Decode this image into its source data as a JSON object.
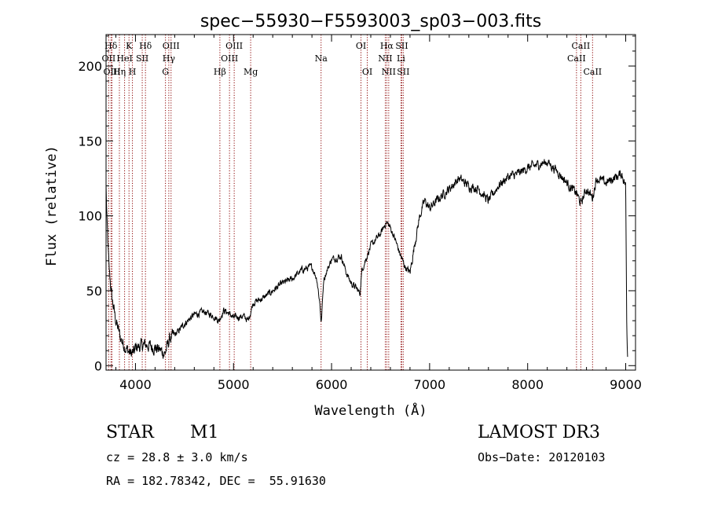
{
  "chart_data": {
    "type": "line",
    "title": "spec−55930−F5593003_sp03−003.fits",
    "xlabel": "Wavelength (Å)",
    "ylabel": "Flux (relative)",
    "xlim": [
      3700,
      9100
    ],
    "ylim": [
      -3,
      221
    ],
    "xticks": [
      4000,
      5000,
      6000,
      7000,
      8000,
      9000
    ],
    "yticks": [
      0,
      50,
      100,
      150,
      200
    ],
    "grid": false,
    "legend": "none",
    "line_color": "#000000",
    "marker_color": "#8b0000",
    "line_markers": [
      {
        "label": "Hδ",
        "x": 3750,
        "row": 1
      },
      {
        "label": "OII",
        "x": 3727,
        "row": 2
      },
      {
        "label": "OIII",
        "x": 3760,
        "row": 3
      },
      {
        "label": "K",
        "x": 3934,
        "row": 1
      },
      {
        "label": "HeI",
        "x": 3889,
        "row": 2
      },
      {
        "label": "Hη",
        "x": 3836,
        "row": 3
      },
      {
        "label": "SII",
        "x": 4069,
        "row": 2
      },
      {
        "label": "H",
        "x": 3969,
        "row": 3
      },
      {
        "label": "Hδ",
        "x": 4102,
        "row": 1
      },
      {
        "label": "OIII",
        "x": 4363,
        "row": 1
      },
      {
        "label": "Hγ",
        "x": 4340,
        "row": 2
      },
      {
        "label": "G",
        "x": 4306,
        "row": 3
      },
      {
        "label": "OIII",
        "x": 5007,
        "row": 1
      },
      {
        "label": "OIII",
        "x": 4959,
        "row": 2
      },
      {
        "label": "Hβ",
        "x": 4861,
        "row": 3
      },
      {
        "label": "Mg",
        "x": 5175,
        "row": 3
      },
      {
        "label": "Na",
        "x": 5893,
        "row": 2
      },
      {
        "label": "OI",
        "x": 6300,
        "row": 1
      },
      {
        "label": "OI",
        "x": 6364,
        "row": 3
      },
      {
        "label": "Hα",
        "x": 6563,
        "row": 1
      },
      {
        "label": "NII",
        "x": 6548,
        "row": 2
      },
      {
        "label": "NII",
        "x": 6583,
        "row": 3
      },
      {
        "label": "SII",
        "x": 6716,
        "row": 1
      },
      {
        "label": "Li",
        "x": 6708,
        "row": 2
      },
      {
        "label": "SII",
        "x": 6731,
        "row": 3
      },
      {
        "label": "CaII",
        "x": 8542,
        "row": 1
      },
      {
        "label": "CaII",
        "x": 8498,
        "row": 2
      },
      {
        "label": "CaII",
        "x": 8662,
        "row": 3
      }
    ],
    "anchors": [
      [
        3700,
        120
      ],
      [
        3710,
        95
      ],
      [
        3730,
        65
      ],
      [
        3760,
        45
      ],
      [
        3800,
        30
      ],
      [
        3850,
        18
      ],
      [
        3900,
        12
      ],
      [
        3950,
        8
      ],
      [
        3990,
        9
      ],
      [
        4000,
        12
      ],
      [
        4100,
        14
      ],
      [
        4200,
        12
      ],
      [
        4260,
        10
      ],
      [
        4300,
        8
      ],
      [
        4350,
        18
      ],
      [
        4400,
        20
      ],
      [
        4500,
        28
      ],
      [
        4600,
        34
      ],
      [
        4700,
        36
      ],
      [
        4800,
        33
      ],
      [
        4850,
        30
      ],
      [
        4900,
        37
      ],
      [
        4950,
        35
      ],
      [
        5000,
        32
      ],
      [
        5100,
        33
      ],
      [
        5150,
        30
      ],
      [
        5200,
        42
      ],
      [
        5300,
        45
      ],
      [
        5400,
        50
      ],
      [
        5500,
        55
      ],
      [
        5600,
        58
      ],
      [
        5700,
        64
      ],
      [
        5800,
        66
      ],
      [
        5850,
        58
      ],
      [
        5880,
        42
      ],
      [
        5895,
        28
      ],
      [
        5920,
        58
      ],
      [
        6000,
        71
      ],
      [
        6100,
        73
      ],
      [
        6150,
        62
      ],
      [
        6200,
        55
      ],
      [
        6250,
        52
      ],
      [
        6290,
        48
      ],
      [
        6310,
        64
      ],
      [
        6400,
        80
      ],
      [
        6500,
        88
      ],
      [
        6560,
        96
      ],
      [
        6600,
        92
      ],
      [
        6650,
        84
      ],
      [
        6700,
        74
      ],
      [
        6750,
        66
      ],
      [
        6800,
        62
      ],
      [
        6850,
        82
      ],
      [
        6900,
        100
      ],
      [
        6950,
        110
      ],
      [
        7000,
        105
      ],
      [
        7100,
        112
      ],
      [
        7200,
        118
      ],
      [
        7300,
        125
      ],
      [
        7400,
        120
      ],
      [
        7500,
        118
      ],
      [
        7600,
        110
      ],
      [
        7700,
        120
      ],
      [
        7800,
        126
      ],
      [
        7900,
        128
      ],
      [
        8000,
        132
      ],
      [
        8100,
        134
      ],
      [
        8200,
        136
      ],
      [
        8300,
        130
      ],
      [
        8400,
        122
      ],
      [
        8450,
        118
      ],
      [
        8500,
        115
      ],
      [
        8542,
        108
      ],
      [
        8600,
        118
      ],
      [
        8662,
        112
      ],
      [
        8700,
        125
      ],
      [
        8800,
        122
      ],
      [
        8900,
        126
      ],
      [
        8960,
        128
      ],
      [
        9000,
        120
      ],
      [
        9010,
        30
      ],
      [
        9020,
        5
      ]
    ]
  },
  "info": {
    "object_class": "STAR",
    "subclass": "M1",
    "survey": "LAMOST DR3",
    "redshift": "cz = 28.8 ± 3.0 km/s",
    "obs_date": "Obs−Date: 20120103",
    "coords": "RA = 182.78342, DEC =  55.91630"
  }
}
